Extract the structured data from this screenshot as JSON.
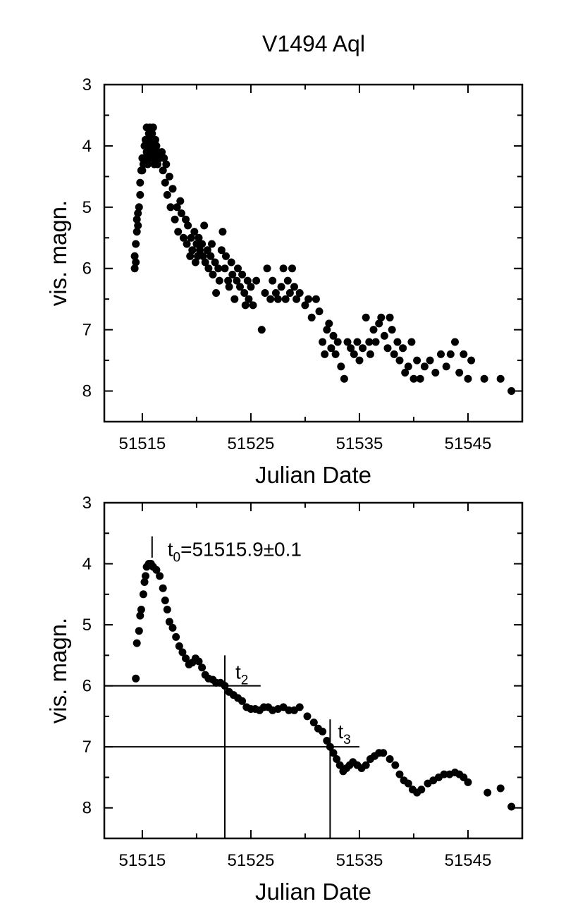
{
  "chart_data": [
    {
      "type": "scatter",
      "title": "V1494 Aql",
      "xlabel": "Julian Date",
      "ylabel": "vis. magn.",
      "xlim": [
        51511.5,
        51550
      ],
      "ylim": [
        3,
        8.5
      ],
      "y_inverted": true,
      "xticks": [
        51515,
        51525,
        51535,
        51545
      ],
      "xtick_labels": [
        "51515",
        "51525",
        "51535",
        "51545"
      ],
      "yticks": [
        3,
        4,
        5,
        6,
        7,
        8
      ],
      "ytick_labels": [
        "3",
        "4",
        "5",
        "6",
        "7",
        "8"
      ],
      "grid": false,
      "legend": "none",
      "marker_color": "#000000",
      "points": [
        [
          51514.3,
          6.0
        ],
        [
          51514.3,
          5.8
        ],
        [
          51514.4,
          5.9
        ],
        [
          51514.4,
          5.6
        ],
        [
          51514.5,
          5.4
        ],
        [
          51514.5,
          5.2
        ],
        [
          51514.6,
          5.1
        ],
        [
          51514.6,
          5.3
        ],
        [
          51514.7,
          5.0
        ],
        [
          51514.8,
          4.8
        ],
        [
          51514.8,
          4.6
        ],
        [
          51514.9,
          4.4
        ],
        [
          51515.0,
          4.2
        ],
        [
          51515.0,
          4.4
        ],
        [
          51515.1,
          4.3
        ],
        [
          51515.2,
          4.0
        ],
        [
          51515.3,
          3.9
        ],
        [
          51515.3,
          4.2
        ],
        [
          51515.4,
          4.1
        ],
        [
          51515.4,
          3.7
        ],
        [
          51515.5,
          4.0
        ],
        [
          51515.5,
          4.3
        ],
        [
          51515.6,
          3.8
        ],
        [
          51515.6,
          4.2
        ],
        [
          51515.7,
          3.7
        ],
        [
          51515.7,
          4.0
        ],
        [
          51515.8,
          4.1
        ],
        [
          51515.8,
          3.9
        ],
        [
          51515.9,
          4.2
        ],
        [
          51515.9,
          3.8
        ],
        [
          51516.0,
          3.7
        ],
        [
          51516.0,
          4.0
        ],
        [
          51516.1,
          4.3
        ],
        [
          51516.1,
          4.1
        ],
        [
          51516.2,
          3.9
        ],
        [
          51516.2,
          4.2
        ],
        [
          51516.3,
          4.0
        ],
        [
          51516.4,
          4.3
        ],
        [
          51516.5,
          4.1
        ],
        [
          51516.6,
          4.2
        ],
        [
          51516.8,
          4.1
        ],
        [
          51516.9,
          4.4
        ],
        [
          51517.0,
          4.2
        ],
        [
          51517.1,
          4.6
        ],
        [
          51517.2,
          4.3
        ],
        [
          51517.3,
          4.8
        ],
        [
          51517.5,
          4.5
        ],
        [
          51517.6,
          5.0
        ],
        [
          51517.8,
          4.7
        ],
        [
          51518.0,
          5.2
        ],
        [
          51518.2,
          5.0
        ],
        [
          51518.3,
          5.4
        ],
        [
          51518.5,
          4.9
        ],
        [
          51518.6,
          5.1
        ],
        [
          51518.8,
          5.5
        ],
        [
          51519.0,
          5.2
        ],
        [
          51519.1,
          5.6
        ],
        [
          51519.2,
          5.3
        ],
        [
          51519.4,
          5.8
        ],
        [
          51519.5,
          5.5
        ],
        [
          51519.6,
          5.7
        ],
        [
          51519.8,
          5.4
        ],
        [
          51519.9,
          5.9
        ],
        [
          51520.0,
          5.6
        ],
        [
          51520.1,
          5.8
        ],
        [
          51520.2,
          5.5
        ],
        [
          51520.3,
          5.7
        ],
        [
          51520.5,
          5.6
        ],
        [
          51520.6,
          5.8
        ],
        [
          51520.7,
          5.3
        ],
        [
          51520.8,
          5.9
        ],
        [
          51521.0,
          5.7
        ],
        [
          51521.1,
          6.0
        ],
        [
          51521.3,
          5.8
        ],
        [
          51521.4,
          5.6
        ],
        [
          51521.5,
          6.1
        ],
        [
          51521.7,
          5.9
        ],
        [
          51521.8,
          6.4
        ],
        [
          51522.0,
          6.0
        ],
        [
          51522.1,
          6.2
        ],
        [
          51522.3,
          5.7
        ],
        [
          51522.4,
          5.4
        ],
        [
          51522.6,
          6.0
        ],
        [
          51522.7,
          5.8
        ],
        [
          51522.9,
          6.2
        ],
        [
          51523.0,
          6.3
        ],
        [
          51523.2,
          5.9
        ],
        [
          51523.3,
          6.1
        ],
        [
          51523.5,
          6.5
        ],
        [
          51523.7,
          6.2
        ],
        [
          51523.8,
          6.0
        ],
        [
          51524.0,
          6.3
        ],
        [
          51524.2,
          6.1
        ],
        [
          51524.4,
          6.4
        ],
        [
          51524.5,
          6.6
        ],
        [
          51524.7,
          6.2
        ],
        [
          51524.8,
          6.5
        ],
        [
          51525.0,
          6.3
        ],
        [
          51525.2,
          6.6
        ],
        [
          51525.5,
          6.2
        ],
        [
          51526.0,
          7.0
        ],
        [
          51526.3,
          6.4
        ],
        [
          51526.5,
          6.0
        ],
        [
          51526.8,
          6.5
        ],
        [
          51527.0,
          6.2
        ],
        [
          51527.3,
          6.4
        ],
        [
          51527.5,
          6.5
        ],
        [
          51527.8,
          6.3
        ],
        [
          51528.0,
          6.0
        ],
        [
          51528.2,
          6.5
        ],
        [
          51528.4,
          6.2
        ],
        [
          51528.6,
          6.4
        ],
        [
          51528.8,
          6.0
        ],
        [
          51529.0,
          6.3
        ],
        [
          51529.2,
          6.5
        ],
        [
          51529.5,
          6.4
        ],
        [
          51530.0,
          6.6
        ],
        [
          51530.3,
          6.5
        ],
        [
          51530.6,
          6.8
        ],
        [
          51531.0,
          6.5
        ],
        [
          51531.3,
          6.7
        ],
        [
          51531.6,
          7.2
        ],
        [
          51531.8,
          7.4
        ],
        [
          51532.0,
          7.0
        ],
        [
          51532.2,
          6.9
        ],
        [
          51532.4,
          7.3
        ],
        [
          51532.6,
          7.1
        ],
        [
          51532.8,
          7.4
        ],
        [
          51533.0,
          7.2
        ],
        [
          51533.3,
          7.6
        ],
        [
          51533.6,
          7.8
        ],
        [
          51533.9,
          7.2
        ],
        [
          51534.2,
          7.3
        ],
        [
          51534.5,
          7.4
        ],
        [
          51534.8,
          7.2
        ],
        [
          51535.0,
          7.5
        ],
        [
          51535.3,
          7.3
        ],
        [
          51535.6,
          6.8
        ],
        [
          51535.9,
          7.2
        ],
        [
          51536.0,
          7.4
        ],
        [
          51536.3,
          7.0
        ],
        [
          51536.5,
          7.2
        ],
        [
          51536.8,
          6.9
        ],
        [
          51537.0,
          6.8
        ],
        [
          51537.3,
          7.1
        ],
        [
          51537.6,
          7.3
        ],
        [
          51537.8,
          6.8
        ],
        [
          51538.0,
          7.0
        ],
        [
          51538.2,
          7.4
        ],
        [
          51538.5,
          7.2
        ],
        [
          51538.7,
          7.5
        ],
        [
          51539.0,
          7.3
        ],
        [
          51539.2,
          7.7
        ],
        [
          51539.5,
          7.6
        ],
        [
          51539.8,
          7.2
        ],
        [
          51540.0,
          7.8
        ],
        [
          51540.3,
          7.5
        ],
        [
          51540.6,
          7.8
        ],
        [
          51541.0,
          7.6
        ],
        [
          51541.5,
          7.5
        ],
        [
          51542.0,
          7.7
        ],
        [
          51542.5,
          7.4
        ],
        [
          51543.0,
          7.6
        ],
        [
          51543.4,
          7.4
        ],
        [
          51543.8,
          7.2
        ],
        [
          51544.2,
          7.7
        ],
        [
          51544.6,
          7.4
        ],
        [
          51545.0,
          7.8
        ],
        [
          51545.3,
          7.5
        ],
        [
          51546.5,
          7.8
        ],
        [
          51548.0,
          7.8
        ],
        [
          51549.0,
          8.0
        ]
      ]
    },
    {
      "type": "scatter",
      "xlabel": "Julian Date",
      "ylabel": "vis. magn.",
      "xlim": [
        51511.5,
        51550
      ],
      "ylim": [
        3,
        8.5
      ],
      "y_inverted": true,
      "xticks": [
        51515,
        51525,
        51535,
        51545
      ],
      "xtick_labels": [
        "51515",
        "51525",
        "51535",
        "51545"
      ],
      "yticks": [
        3,
        4,
        5,
        6,
        7,
        8
      ],
      "ytick_labels": [
        "3",
        "4",
        "5",
        "6",
        "7",
        "8"
      ],
      "grid": false,
      "legend": "none",
      "marker_color": "#000000",
      "annotations": {
        "t0": {
          "label": "t",
          "sub": "0",
          "text": "=51515.9±0.1",
          "x": 51515.9
        },
        "t2": {
          "label": "t",
          "sub": "2",
          "x": 51522.6,
          "y": 6.0
        },
        "t3": {
          "label": "t",
          "sub": "3",
          "x": 51532.3,
          "y": 7.0
        }
      },
      "points": [
        [
          51514.4,
          5.88
        ],
        [
          51514.5,
          5.3
        ],
        [
          51514.7,
          5.1
        ],
        [
          51514.8,
          4.85
        ],
        [
          51514.9,
          4.75
        ],
        [
          51515.1,
          4.5
        ],
        [
          51515.2,
          4.3
        ],
        [
          51515.3,
          4.2
        ],
        [
          51515.4,
          4.05
        ],
        [
          51515.6,
          4.0
        ],
        [
          51515.8,
          4.0
        ],
        [
          51516.0,
          4.05
        ],
        [
          51516.3,
          4.1
        ],
        [
          51516.6,
          4.2
        ],
        [
          51516.9,
          4.4
        ],
        [
          51517.1,
          4.6
        ],
        [
          51517.3,
          4.75
        ],
        [
          51517.5,
          4.95
        ],
        [
          51517.8,
          5.05
        ],
        [
          51518.1,
          5.2
        ],
        [
          51518.4,
          5.35
        ],
        [
          51518.7,
          5.45
        ],
        [
          51519.0,
          5.55
        ],
        [
          51519.3,
          5.65
        ],
        [
          51519.6,
          5.62
        ],
        [
          51519.9,
          5.55
        ],
        [
          51520.2,
          5.6
        ],
        [
          51520.5,
          5.7
        ],
        [
          51520.8,
          5.82
        ],
        [
          51521.1,
          5.88
        ],
        [
          51521.5,
          5.9
        ],
        [
          51521.8,
          5.95
        ],
        [
          51522.2,
          5.95
        ],
        [
          51522.6,
          6.0
        ],
        [
          51523.0,
          6.1
        ],
        [
          51523.4,
          6.15
        ],
        [
          51523.8,
          6.2
        ],
        [
          51524.2,
          6.25
        ],
        [
          51524.6,
          6.35
        ],
        [
          51525.0,
          6.38
        ],
        [
          51525.4,
          6.38
        ],
        [
          51525.8,
          6.4
        ],
        [
          51526.2,
          6.35
        ],
        [
          51526.6,
          6.35
        ],
        [
          51527.0,
          6.4
        ],
        [
          51527.5,
          6.38
        ],
        [
          51528.0,
          6.35
        ],
        [
          51528.5,
          6.4
        ],
        [
          51529.0,
          6.4
        ],
        [
          51529.5,
          6.35
        ],
        [
          51530.2,
          6.5
        ],
        [
          51530.8,
          6.6
        ],
        [
          51531.2,
          6.7
        ],
        [
          51531.6,
          6.75
        ],
        [
          51532.0,
          6.9
        ],
        [
          51532.3,
          7.0
        ],
        [
          51532.6,
          7.1
        ],
        [
          51532.9,
          7.2
        ],
        [
          51533.2,
          7.3
        ],
        [
          51533.5,
          7.4
        ],
        [
          51533.8,
          7.35
        ],
        [
          51534.1,
          7.3
        ],
        [
          51534.4,
          7.25
        ],
        [
          51534.8,
          7.3
        ],
        [
          51535.2,
          7.35
        ],
        [
          51535.6,
          7.3
        ],
        [
          51536.0,
          7.2
        ],
        [
          51536.4,
          7.15
        ],
        [
          51536.8,
          7.1
        ],
        [
          51537.2,
          7.1
        ],
        [
          51537.8,
          7.2
        ],
        [
          51538.3,
          7.3
        ],
        [
          51538.7,
          7.45
        ],
        [
          51539.1,
          7.55
        ],
        [
          51539.5,
          7.6
        ],
        [
          51539.9,
          7.7
        ],
        [
          51540.3,
          7.75
        ],
        [
          51540.7,
          7.7
        ],
        [
          51541.3,
          7.6
        ],
        [
          51541.8,
          7.55
        ],
        [
          51542.3,
          7.5
        ],
        [
          51542.8,
          7.45
        ],
        [
          51543.3,
          7.45
        ],
        [
          51543.8,
          7.42
        ],
        [
          51544.2,
          7.45
        ],
        [
          51544.6,
          7.5
        ],
        [
          51545.0,
          7.58
        ],
        [
          51546.8,
          7.75
        ],
        [
          51548.0,
          7.68
        ],
        [
          51549.0,
          7.98
        ]
      ]
    }
  ]
}
